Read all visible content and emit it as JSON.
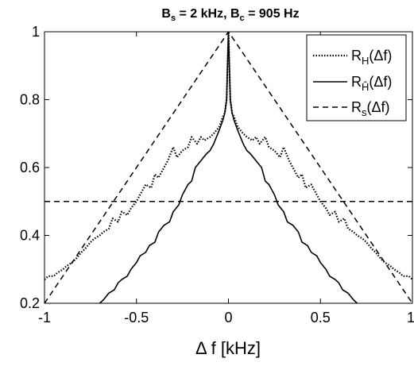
{
  "chart_data": {
    "type": "line",
    "title": {
      "b1": "B",
      "s1": "s",
      "mid": " = 2 kHz, B",
      "s2": "c",
      "end": " = 905 Hz"
    },
    "xlabel": "Δ f [kHz]",
    "ylabel": "",
    "xlim": [
      -1,
      1
    ],
    "ylim": [
      0.2,
      1
    ],
    "xticks": [
      -1,
      -0.5,
      0,
      0.5,
      1
    ],
    "yticks": [
      0.2,
      0.4,
      0.6,
      0.8,
      1
    ],
    "xtick_labels": [
      "-1",
      "-0.5",
      "0",
      "0.5",
      "1"
    ],
    "ytick_labels": [
      "0.2",
      "0.4",
      "0.6",
      "0.8",
      "1"
    ],
    "grid": false,
    "legend_position": "top-right",
    "legend": [
      {
        "pre": "R",
        "sub": "H",
        "post": "(Δf)",
        "style": "dotted"
      },
      {
        "pre": "R",
        "sub": "Ĥ",
        "post": "(Δf)",
        "style": "solid"
      },
      {
        "pre": "R",
        "sub": "s",
        "post": "(Δf)",
        "style": "dashed"
      }
    ],
    "series": [
      {
        "key": "RH",
        "style": "dotted",
        "x": [
          0,
          0.005,
          0.01,
          0.02,
          0.03,
          0.05,
          0.08,
          0.1,
          0.13,
          0.15,
          0.17,
          0.2,
          0.22,
          0.25,
          0.28,
          0.3,
          0.33,
          0.35,
          0.38,
          0.4,
          0.42,
          0.45,
          0.48,
          0.5,
          0.53,
          0.55,
          0.58,
          0.6,
          0.63,
          0.65,
          0.68,
          0.7,
          0.73,
          0.75,
          0.78,
          0.8,
          0.83,
          0.85,
          0.88,
          0.9,
          0.93,
          0.95,
          0.98,
          1.0
        ],
        "y": [
          1.0,
          0.9,
          0.8,
          0.76,
          0.75,
          0.72,
          0.7,
          0.69,
          0.68,
          0.69,
          0.67,
          0.69,
          0.66,
          0.65,
          0.63,
          0.66,
          0.62,
          0.6,
          0.57,
          0.58,
          0.54,
          0.55,
          0.52,
          0.5,
          0.48,
          0.46,
          0.47,
          0.44,
          0.45,
          0.42,
          0.41,
          0.4,
          0.39,
          0.38,
          0.36,
          0.35,
          0.33,
          0.32,
          0.31,
          0.3,
          0.29,
          0.28,
          0.28,
          0.27
        ]
      },
      {
        "key": "RHhat",
        "style": "solid",
        "x": [
          0,
          0.005,
          0.01,
          0.02,
          0.03,
          0.05,
          0.08,
          0.1,
          0.12,
          0.15,
          0.18,
          0.2,
          0.22,
          0.25,
          0.27,
          0.3,
          0.32,
          0.35,
          0.38,
          0.4,
          0.43,
          0.45,
          0.48,
          0.5,
          0.53,
          0.55,
          0.58,
          0.6,
          0.62,
          0.65,
          0.68,
          0.7
        ],
        "y": [
          1.0,
          0.9,
          0.8,
          0.76,
          0.74,
          0.71,
          0.67,
          0.65,
          0.64,
          0.62,
          0.6,
          0.56,
          0.55,
          0.52,
          0.49,
          0.47,
          0.44,
          0.43,
          0.41,
          0.38,
          0.37,
          0.35,
          0.34,
          0.32,
          0.3,
          0.28,
          0.27,
          0.26,
          0.24,
          0.23,
          0.21,
          0.2
        ]
      },
      {
        "key": "Rs",
        "style": "dashed",
        "x": [
          -1,
          0,
          1
        ],
        "y": [
          0.2,
          1.0,
          0.2
        ]
      },
      {
        "key": "half",
        "style": "dashed",
        "x": [
          -1,
          1
        ],
        "y": [
          0.5,
          0.5
        ]
      }
    ]
  }
}
